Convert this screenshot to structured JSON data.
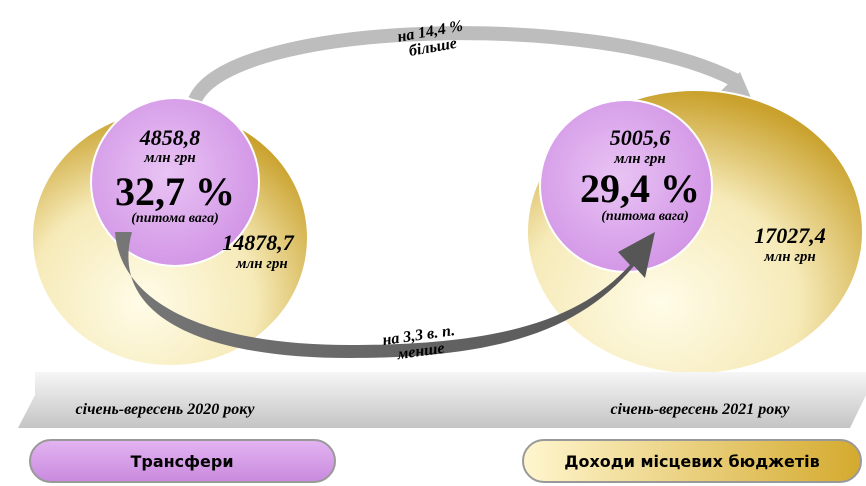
{
  "left": {
    "share_value": "4858,8",
    "share_unit": "млн грн",
    "percent": "32,7 %",
    "percent_note": "(питома вага)",
    "total_value": "14878,7",
    "total_unit": "млн грн",
    "period": "січень-вересень 2020 року"
  },
  "right": {
    "share_value": "5005,6",
    "share_unit": "млн грн",
    "percent": "29,4 %",
    "percent_note": "(питома вага)",
    "total_value": "17027,4",
    "total_unit": "млн грн",
    "period": "січень-вересень 2021 року"
  },
  "top_change": {
    "line1": "на 14,4 %",
    "line2": "більше"
  },
  "bottom_change": {
    "line1": "на 3,3 в. п.",
    "line2": "менше"
  },
  "legend": {
    "transfers": "Трансфери",
    "revenues": "Доходи місцевих бюджетів"
  }
}
